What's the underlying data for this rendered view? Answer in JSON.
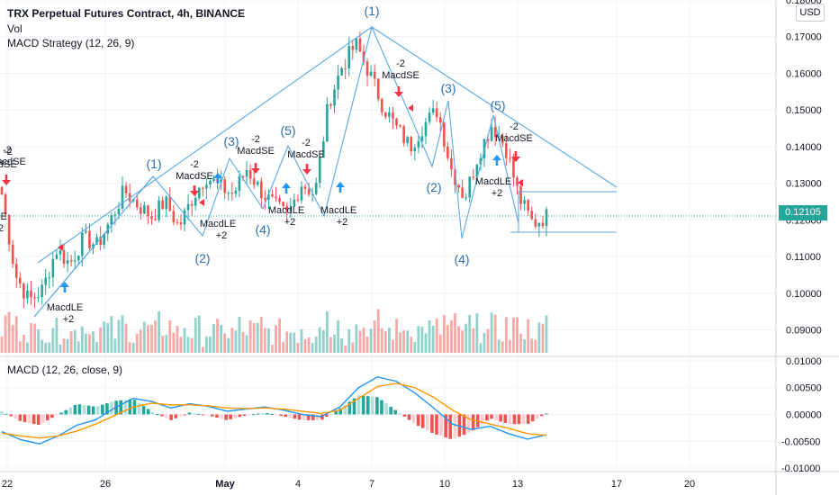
{
  "header": {
    "title": "TRX Perpetual Futures Contract, 4h, BINANCE",
    "volume_label": "Vol",
    "strategy_label": "MACD Strategy (12, 26, 9)",
    "macd_label": "MACD (12, 26, close, 9)",
    "currency": "USD",
    "last_price": "0.12105"
  },
  "colors": {
    "up": "#26a69a",
    "down": "#ef5350",
    "drawing": "#5aa9e6",
    "macd_line": "#2196f3",
    "signal_line": "#ff9800",
    "long_arrow": "#2196f3",
    "short_arrow": "#f23645"
  },
  "price_axis": {
    "ticks": [
      "0.18000",
      "0.17000",
      "0.16000",
      "0.15000",
      "0.14000",
      "0.13000",
      "0.12000",
      "0.11000",
      "0.10000",
      "0.09000"
    ]
  },
  "macd_axis": {
    "ticks": [
      "0.01000",
      "0.00500",
      "0.00000",
      "-0.00500",
      "-0.01000"
    ]
  },
  "time_axis": {
    "ticks": [
      "22",
      "26",
      "May",
      "4",
      "7",
      "10",
      "13",
      "17",
      "20"
    ]
  },
  "wave_labels": {
    "left": [
      "(1)",
      "(2)",
      "(3)",
      "(4)",
      "(5)"
    ],
    "right": [
      "(1)",
      "(2)",
      "(3)",
      "(4)",
      "(5)"
    ]
  },
  "signal_labels": {
    "long": [
      "MacdLE",
      "+2"
    ],
    "short": [
      "-2",
      "MacdSE"
    ]
  },
  "chart_data": [
    {
      "type": "candlestick",
      "title": "TRX Perpetual Futures Contract, 4h, BINANCE",
      "ylim": [
        0.083,
        0.18
      ],
      "x_ticks": [
        "22",
        "26",
        "May",
        "4",
        "7",
        "10",
        "13",
        "17",
        "20"
      ],
      "last_price": 0.12105,
      "close_path": [
        0.127,
        0.105,
        0.098,
        0.101,
        0.112,
        0.108,
        0.115,
        0.113,
        0.12,
        0.128,
        0.124,
        0.121,
        0.125,
        0.118,
        0.126,
        0.132,
        0.129,
        0.127,
        0.134,
        0.128,
        0.124,
        0.121,
        0.13,
        0.127,
        0.152,
        0.162,
        0.168,
        0.16,
        0.151,
        0.145,
        0.14,
        0.146,
        0.15,
        0.134,
        0.126,
        0.138,
        0.146,
        0.14,
        0.126,
        0.119,
        0.121
      ],
      "volume_note": "volume bars colored by candle direction"
    },
    {
      "type": "line",
      "title": "MACD (12, 26, close, 9)",
      "ylim": [
        -0.0105,
        0.0105
      ],
      "series": [
        {
          "values": [
            -0.0032,
            -0.0047,
            -0.0055,
            -0.004,
            -0.002,
            -0.001,
            0.0012,
            0.003,
            0.0024,
            0.0012,
            0.002,
            0.0015,
            0.0006,
            0.001,
            0.0014,
            0.0008,
            0.0,
            -0.0004,
            0.0014,
            0.005,
            0.007,
            0.0062,
            0.004,
            0.0012,
            -0.0018,
            -0.0028,
            -0.0022,
            -0.0036,
            -0.0046,
            -0.0038
          ]
        },
        {
          "values": [
            -0.0035,
            -0.004,
            -0.0044,
            -0.004,
            -0.0031,
            -0.0018,
            -0.0002,
            0.0014,
            0.0021,
            0.0018,
            0.0018,
            0.0016,
            0.0012,
            0.0011,
            0.0012,
            0.001,
            0.0006,
            0.0002,
            0.0008,
            0.003,
            0.0052,
            0.0058,
            0.005,
            0.0032,
            0.0008,
            -0.001,
            -0.0018,
            -0.0026,
            -0.0036,
            -0.0039
          ]
        }
      ]
    }
  ]
}
